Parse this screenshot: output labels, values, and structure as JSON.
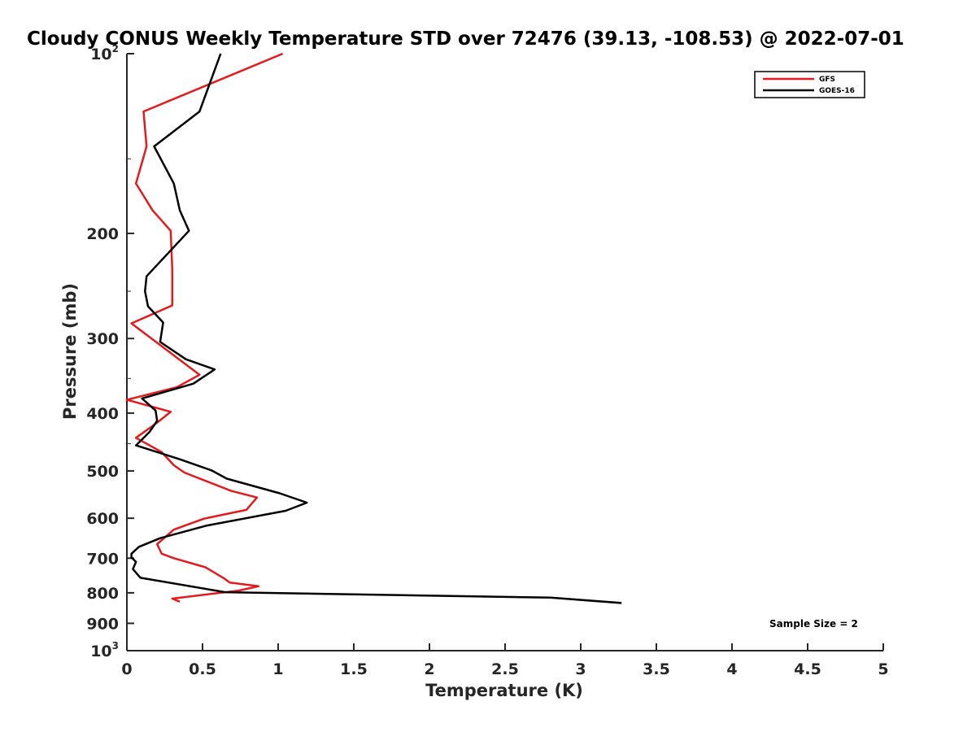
{
  "chart_data": {
    "type": "line",
    "title": "Cloudy CONUS Weekly Temperature STD over 72476 (39.13, -108.53) @ 2022-07-01",
    "xlabel": "Temperature (K)",
    "ylabel": "Pressure (mb)",
    "xlim": [
      0,
      5
    ],
    "ylim": [
      100,
      1000
    ],
    "y_scale": "log",
    "y_reversed": true,
    "grid": false,
    "legend_position": "top-right",
    "x_ticks": [
      {
        "value": 0,
        "label": "0"
      },
      {
        "value": 0.5,
        "label": "0.5"
      },
      {
        "value": 1,
        "label": "1"
      },
      {
        "value": 1.5,
        "label": "1.5"
      },
      {
        "value": 2,
        "label": "2"
      },
      {
        "value": 2.5,
        "label": "2.5"
      },
      {
        "value": 3,
        "label": "3"
      },
      {
        "value": 3.5,
        "label": "3.5"
      },
      {
        "value": 4,
        "label": "4"
      },
      {
        "value": 4.5,
        "label": "4.5"
      },
      {
        "value": 5,
        "label": "5"
      }
    ],
    "y_ticks": [
      {
        "value": 100,
        "label": "10",
        "sup": "2"
      },
      {
        "value": 200,
        "label": "200",
        "sup": ""
      },
      {
        "value": 300,
        "label": "300",
        "sup": ""
      },
      {
        "value": 400,
        "label": "400",
        "sup": ""
      },
      {
        "value": 500,
        "label": "500",
        "sup": ""
      },
      {
        "value": 600,
        "label": "600",
        "sup": ""
      },
      {
        "value": 700,
        "label": "700",
        "sup": ""
      },
      {
        "value": 800,
        "label": "800",
        "sup": ""
      },
      {
        "value": 900,
        "label": "900",
        "sup": ""
      },
      {
        "value": 1000,
        "label": "10",
        "sup": "3"
      }
    ],
    "series": [
      {
        "name": "GFS",
        "color": "#e41a1c",
        "points": [
          [
            1.03,
            100
          ],
          [
            0.11,
            125
          ],
          [
            0.13,
            143
          ],
          [
            0.06,
            165
          ],
          [
            0.17,
            183
          ],
          [
            0.29,
            198
          ],
          [
            0.3,
            230
          ],
          [
            0.3,
            264
          ],
          [
            0.03,
            283
          ],
          [
            0.48,
            345
          ],
          [
            0.33,
            362
          ],
          [
            0.0,
            380
          ],
          [
            0.29,
            398
          ],
          [
            0.2,
            415
          ],
          [
            0.06,
            440
          ],
          [
            0.23,
            465
          ],
          [
            0.31,
            489
          ],
          [
            0.38,
            503
          ],
          [
            0.69,
            540
          ],
          [
            0.86,
            554
          ],
          [
            0.79,
            581
          ],
          [
            0.51,
            601
          ],
          [
            0.31,
            627
          ],
          [
            0.2,
            663
          ],
          [
            0.23,
            688
          ],
          [
            0.31,
            700
          ],
          [
            0.52,
            725
          ],
          [
            0.64,
            756
          ],
          [
            0.68,
            769
          ],
          [
            0.87,
            780
          ],
          [
            0.74,
            793
          ],
          [
            0.3,
            818
          ],
          [
            0.35,
            828
          ]
        ]
      },
      {
        "name": "GOES-16",
        "color": "#000000",
        "points": [
          [
            0.62,
            100
          ],
          [
            0.48,
            125
          ],
          [
            0.18,
            143
          ],
          [
            0.31,
            165
          ],
          [
            0.35,
            183
          ],
          [
            0.41,
            198
          ],
          [
            0.13,
            236
          ],
          [
            0.12,
            250
          ],
          [
            0.14,
            265
          ],
          [
            0.24,
            282
          ],
          [
            0.22,
            304
          ],
          [
            0.39,
            325
          ],
          [
            0.58,
            338
          ],
          [
            0.44,
            357
          ],
          [
            0.1,
            378
          ],
          [
            0.19,
            396
          ],
          [
            0.2,
            412
          ],
          [
            0.15,
            430
          ],
          [
            0.06,
            453
          ],
          [
            0.35,
            478
          ],
          [
            0.56,
            499
          ],
          [
            0.66,
            515
          ],
          [
            1.01,
            545
          ],
          [
            1.19,
            565
          ],
          [
            1.05,
            583
          ],
          [
            0.53,
            617
          ],
          [
            0.22,
            648
          ],
          [
            0.08,
            670
          ],
          [
            0.03,
            688
          ],
          [
            0.03,
            698
          ],
          [
            0.06,
            710
          ],
          [
            0.04,
            730
          ],
          [
            0.09,
            755
          ],
          [
            0.65,
            798
          ],
          [
            2.8,
            815
          ],
          [
            3.27,
            832
          ]
        ]
      }
    ],
    "annotation": "Sample Size = 2"
  }
}
